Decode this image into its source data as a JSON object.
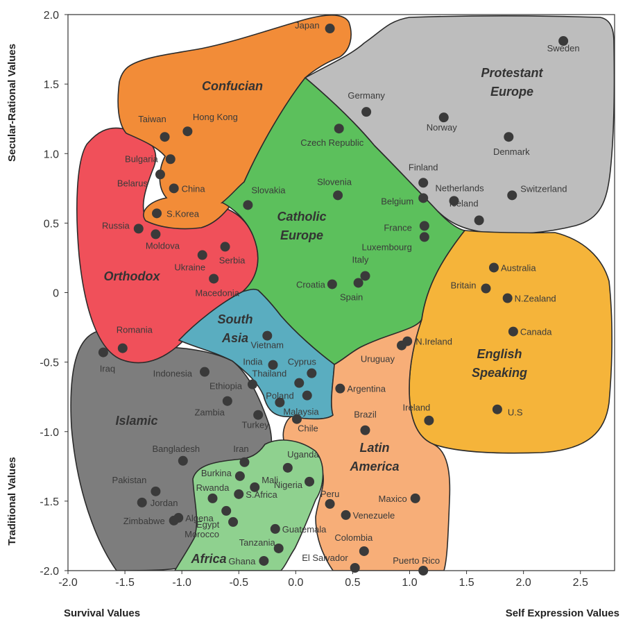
{
  "chart_data": {
    "type": "scatter",
    "title": "",
    "xlabel_left": "Survival Values",
    "xlabel_right": "Self Expression Values",
    "ylabel_top": "Secular-Rational Values",
    "ylabel_bottom": "Traditional Values",
    "xlim": [
      -2.0,
      2.8
    ],
    "ylim": [
      -2.0,
      2.0
    ],
    "x_ticks": [
      "-2.0",
      "-1.5",
      "-1.0",
      "-0.5",
      "0.0",
      "0.5",
      "1.0",
      "1.5",
      "2.0",
      "2.5"
    ],
    "y_ticks": [
      "2.0",
      "1.5",
      "1.0",
      "0.5",
      "0",
      "-0.5",
      "-1.0",
      "-1.5",
      "-2.0"
    ],
    "grid": false,
    "regions": [
      {
        "name": "Confucian",
        "label_lines": [
          "Confucian"
        ],
        "color": "#f28c38"
      },
      {
        "name": "Protestant Europe",
        "label_lines": [
          "Protestant",
          "Europe"
        ],
        "color": "#bdbdbd"
      },
      {
        "name": "Catholic Europe",
        "label_lines": [
          "Catholic",
          "Europe"
        ],
        "color": "#5cc05c"
      },
      {
        "name": "Orthodox",
        "label_lines": [
          "Orthodox"
        ],
        "color": "#f0505a"
      },
      {
        "name": "South Asia",
        "label_lines": [
          "South",
          "Asia"
        ],
        "color": "#5aadc0"
      },
      {
        "name": "Islamic",
        "label_lines": [
          "Islamic"
        ],
        "color": "#7d7d7d"
      },
      {
        "name": "English Speaking",
        "label_lines": [
          "English",
          "Speaking"
        ],
        "color": "#f5b43a"
      },
      {
        "name": "Latin America",
        "label_lines": [
          "Latin",
          "America"
        ],
        "color": "#f7ae78"
      },
      {
        "name": "Africa",
        "label_lines": [
          "Africa"
        ],
        "color": "#8fd18f"
      }
    ],
    "points": [
      {
        "name": "Japan",
        "x": 0.3,
        "y": 1.9
      },
      {
        "name": "Sweden",
        "x": 2.35,
        "y": 1.81
      },
      {
        "name": "Germany",
        "x": 0.62,
        "y": 1.3
      },
      {
        "name": "Norway",
        "x": 1.3,
        "y": 1.26
      },
      {
        "name": "Czech Republic",
        "x": 0.38,
        "y": 1.18
      },
      {
        "name": "Denmark",
        "x": 1.87,
        "y": 1.12
      },
      {
        "name": "Taiwan",
        "x": -1.15,
        "y": 1.12
      },
      {
        "name": "Hong Kong",
        "x": -0.95,
        "y": 1.16
      },
      {
        "name": "Bulgaria",
        "x": -1.1,
        "y": 0.96
      },
      {
        "name": "Belarus",
        "x": -1.19,
        "y": 0.85
      },
      {
        "name": "China",
        "x": -1.07,
        "y": 0.75
      },
      {
        "name": "Finland",
        "x": 1.12,
        "y": 0.79
      },
      {
        "name": "Belgium",
        "x": 1.12,
        "y": 0.68
      },
      {
        "name": "Netherlands",
        "x": 1.39,
        "y": 0.66
      },
      {
        "name": "Switzerland",
        "x": 1.9,
        "y": 0.7
      },
      {
        "name": "Slovenia",
        "x": 0.37,
        "y": 0.7
      },
      {
        "name": "Slovakia",
        "x": -0.42,
        "y": 0.63
      },
      {
        "name": "Iceland",
        "x": 1.61,
        "y": 0.52
      },
      {
        "name": "S.Korea",
        "x": -1.22,
        "y": 0.57
      },
      {
        "name": "Russia",
        "x": -1.38,
        "y": 0.46
      },
      {
        "name": "France",
        "x": 1.13,
        "y": 0.48
      },
      {
        "name": "Luxembourg",
        "x": 1.13,
        "y": 0.4
      },
      {
        "name": "Moldova",
        "x": -1.23,
        "y": 0.42
      },
      {
        "name": "Serbia",
        "x": -0.62,
        "y": 0.33
      },
      {
        "name": "Ukraine",
        "x": -0.82,
        "y": 0.27
      },
      {
        "name": "Macedonia",
        "x": -0.72,
        "y": 0.1
      },
      {
        "name": "Australia",
        "x": 1.74,
        "y": 0.18
      },
      {
        "name": "Italy",
        "x": 0.61,
        "y": 0.12
      },
      {
        "name": "Croatia",
        "x": 0.32,
        "y": 0.06
      },
      {
        "name": "Spain",
        "x": 0.55,
        "y": 0.07
      },
      {
        "name": "Britain",
        "x": 1.67,
        "y": 0.03
      },
      {
        "name": "N.Zealand",
        "x": 1.86,
        "y": -0.04
      },
      {
        "name": "Canada",
        "x": 1.91,
        "y": -0.28
      },
      {
        "name": "Vietnam",
        "x": -0.25,
        "y": -0.31
      },
      {
        "name": "N.Ireland",
        "x": 0.98,
        "y": -0.35
      },
      {
        "name": "Uruguay",
        "x": 0.93,
        "y": -0.38
      },
      {
        "name": "Romania",
        "x": -1.52,
        "y": -0.4
      },
      {
        "name": "Iraq",
        "x": -1.69,
        "y": -0.43
      },
      {
        "name": "India",
        "x": -0.2,
        "y": -0.52
      },
      {
        "name": "Cyprus",
        "x": 0.14,
        "y": -0.58
      },
      {
        "name": "Indonesia",
        "x": -0.8,
        "y": -0.57
      },
      {
        "name": "Thailand",
        "x": 0.03,
        "y": -0.65
      },
      {
        "name": "Ethiopia",
        "x": -0.38,
        "y": -0.66
      },
      {
        "name": "Argentina",
        "x": 0.39,
        "y": -0.69
      },
      {
        "name": "Poland",
        "x": 0.1,
        "y": -0.74
      },
      {
        "name": "Zambia",
        "x": -0.6,
        "y": -0.78
      },
      {
        "name": "Malaysia",
        "x": -0.14,
        "y": -0.79
      },
      {
        "name": "Ireland",
        "x": 1.17,
        "y": -0.92
      },
      {
        "name": "U.S",
        "x": 1.77,
        "y": -0.84
      },
      {
        "name": "Turkey",
        "x": -0.33,
        "y": -0.88
      },
      {
        "name": "Chile",
        "x": 0.01,
        "y": -0.91
      },
      {
        "name": "Brazil",
        "x": 0.61,
        "y": -0.99
      },
      {
        "name": "Bangladesh",
        "x": -0.99,
        "y": -1.21
      },
      {
        "name": "Iran",
        "x": -0.45,
        "y": -1.22
      },
      {
        "name": "Uganda",
        "x": -0.07,
        "y": -1.26
      },
      {
        "name": "Burkina",
        "x": -0.49,
        "y": -1.32
      },
      {
        "name": "Mali",
        "x": -0.36,
        "y": -1.4
      },
      {
        "name": "Nigeria",
        "x": 0.12,
        "y": -1.36
      },
      {
        "name": "Pakistan",
        "x": -1.23,
        "y": -1.43
      },
      {
        "name": "Rwanda",
        "x": -0.73,
        "y": -1.48
      },
      {
        "name": "S.Africa",
        "x": -0.5,
        "y": -1.45
      },
      {
        "name": "Maxico",
        "x": 1.05,
        "y": -1.48
      },
      {
        "name": "Jordan",
        "x": -1.35,
        "y": -1.51
      },
      {
        "name": "Peru",
        "x": 0.3,
        "y": -1.52
      },
      {
        "name": "Algena",
        "x": -1.03,
        "y": -1.62
      },
      {
        "name": "Egypt",
        "x": -0.61,
        "y": -1.57
      },
      {
        "name": "Venezuele",
        "x": 0.44,
        "y": -1.6
      },
      {
        "name": "Zimbabwe",
        "x": -1.07,
        "y": -1.64
      },
      {
        "name": "Morocco",
        "x": -0.55,
        "y": -1.65
      },
      {
        "name": "Guatemala",
        "x": -0.18,
        "y": -1.7
      },
      {
        "name": "Colombia",
        "x": 0.6,
        "y": -1.86
      },
      {
        "name": "Tanzania",
        "x": -0.15,
        "y": -1.84
      },
      {
        "name": "Ghana",
        "x": -0.28,
        "y": -1.93
      },
      {
        "name": "El Salvador",
        "x": 0.52,
        "y": -1.98
      },
      {
        "name": "Puerto Rico",
        "x": 1.12,
        "y": -2.0
      }
    ]
  }
}
